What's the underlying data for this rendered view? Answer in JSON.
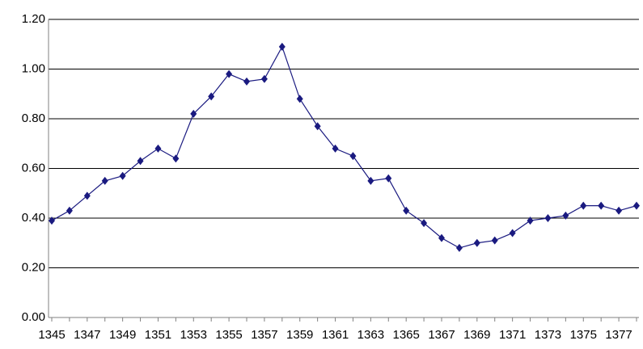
{
  "chart_data": {
    "type": "line",
    "categories": [
      "1345",
      null,
      "1347",
      null,
      "1349",
      null,
      "1351",
      null,
      "1353",
      null,
      "1355",
      null,
      "1357",
      null,
      "1359",
      null,
      "1361",
      null,
      "1363",
      null,
      "1365",
      null,
      "1367",
      null,
      "1369",
      null,
      "1371",
      null,
      "1373",
      null,
      "1375",
      null,
      "1377",
      null
    ],
    "series": [
      {
        "color": "#1a1a80",
        "values": [
          0.39,
          0.43,
          0.49,
          0.55,
          0.57,
          0.63,
          0.68,
          0.64,
          0.82,
          0.89,
          0.98,
          0.95,
          0.96,
          1.09,
          0.88,
          0.77,
          0.68,
          0.65,
          0.55,
          0.56,
          0.43,
          0.38,
          0.32,
          0.28,
          0.3,
          0.31,
          0.34,
          0.39,
          0.4,
          0.41,
          0.45,
          0.45,
          0.43,
          0.45
        ]
      }
    ],
    "ylim": [
      0,
      1.2
    ],
    "yticks": [
      {
        "value": 0,
        "label": "0.00"
      },
      {
        "value": 0.2,
        "label": "0.20"
      },
      {
        "value": 0.4,
        "label": "0.40"
      },
      {
        "value": 0.6,
        "label": "0.60"
      },
      {
        "value": 0.8,
        "label": "0.80"
      },
      {
        "value": 1.0,
        "label": "1.00"
      },
      {
        "value": 1.2,
        "label": "1.20"
      }
    ],
    "grid": true
  }
}
